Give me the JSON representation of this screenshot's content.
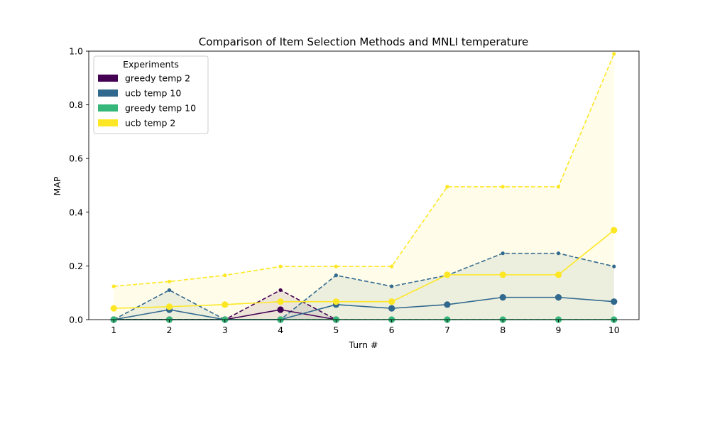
{
  "chart_data": {
    "type": "line",
    "title": "Comparison of Item Selection Methods and MNLI temperature",
    "xlabel": "Turn #",
    "ylabel": "MAP",
    "xlim": [
      0.55,
      10.45
    ],
    "ylim": [
      0,
      1.0
    ],
    "x": [
      1,
      2,
      3,
      4,
      5,
      6,
      7,
      8,
      9,
      10
    ],
    "x_ticks": [
      "1",
      "2",
      "3",
      "4",
      "5",
      "6",
      "7",
      "8",
      "9",
      "10"
    ],
    "y_ticks": [
      "0.0",
      "0.2",
      "0.4",
      "0.6",
      "0.8",
      "1.0"
    ],
    "grid": false,
    "legend": {
      "title": "Experiments",
      "placement": "top-left"
    },
    "series": [
      {
        "name": "greedy temp 2",
        "color": "#440154",
        "x": [
          1,
          2,
          3,
          4,
          5
        ],
        "mean": [
          0,
          0,
          0,
          0.037,
          0
        ],
        "upper": [
          0,
          0,
          0,
          0.11,
          0
        ]
      },
      {
        "name": "ucb temp 10",
        "color": "#31688e",
        "x": [
          1,
          2,
          3,
          4,
          5,
          6,
          7,
          8,
          9,
          10
        ],
        "mean": [
          0,
          0.037,
          0,
          0,
          0.056,
          0.042,
          0.056,
          0.083,
          0.083,
          0.067
        ],
        "upper": [
          0,
          0.11,
          0,
          0,
          0.165,
          0.124,
          0.165,
          0.247,
          0.247,
          0.198
        ]
      },
      {
        "name": "greedy temp 10",
        "color": "#35b779",
        "x": [
          1,
          2,
          3,
          4,
          5,
          6,
          7,
          8,
          9,
          10
        ],
        "mean": [
          0,
          0,
          0,
          0,
          0,
          0,
          0,
          0,
          0,
          0
        ],
        "upper": [
          0,
          0,
          0,
          0,
          0,
          0,
          0,
          0,
          0,
          0
        ]
      },
      {
        "name": "ucb temp 2",
        "color": "#fde725",
        "x": [
          1,
          2,
          3,
          4,
          5,
          6,
          7,
          8,
          9,
          10
        ],
        "mean": [
          0.042,
          0.048,
          0.056,
          0.067,
          0.067,
          0.067,
          0.167,
          0.167,
          0.167,
          0.333
        ],
        "upper": [
          0.124,
          0.142,
          0.165,
          0.198,
          0.198,
          0.198,
          0.495,
          0.495,
          0.495,
          0.99
        ]
      }
    ]
  }
}
